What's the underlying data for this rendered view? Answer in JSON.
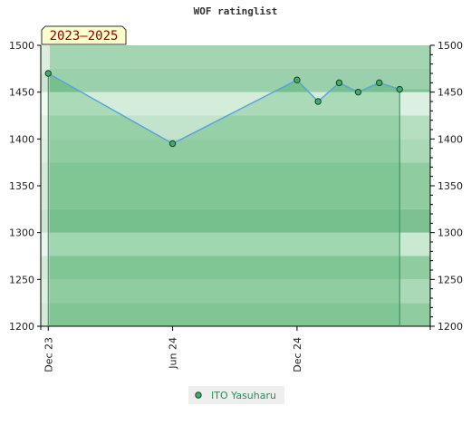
{
  "chart_data": {
    "type": "line",
    "title": "WOF ratinglist",
    "period_badge": "2023–2025",
    "ylim": [
      1200,
      1500
    ],
    "y_ticks": [
      1200,
      1250,
      1300,
      1350,
      1400,
      1450,
      1500
    ],
    "y_tick_labels": [
      "1200",
      "1250",
      "1300",
      "1350",
      "1400",
      "1450",
      "1500"
    ],
    "x_tick_labels": [
      "Dec 23",
      "Jun 24",
      "Dec 24"
    ],
    "x_tick_dates": [
      "2023-12-01",
      "2024-06-01",
      "2024-12-01"
    ],
    "x_range": [
      "2023-11-20",
      "2025-06-15"
    ],
    "grid": true,
    "legend_position": "bottom-center",
    "series": [
      {
        "name": "ITO Yasuharu",
        "color": "#5aa3d8",
        "marker_color": "#3fae6a",
        "points": [
          {
            "x": "2023-12-01",
            "y": 1470
          },
          {
            "x": "2024-06-01",
            "y": 1395
          },
          {
            "x": "2024-12-01",
            "y": 1463
          },
          {
            "x": "2025-01-01",
            "y": 1440
          },
          {
            "x": "2025-02-01",
            "y": 1460
          },
          {
            "x": "2025-03-01",
            "y": 1450
          },
          {
            "x": "2025-04-01",
            "y": 1460
          },
          {
            "x": "2025-05-01",
            "y": 1453
          }
        ]
      }
    ],
    "colors": {
      "band_a": "#8fcc9f",
      "band_b": "#a9d9b6",
      "band_c": "#c9e9d1",
      "band_d": "#7dc193",
      "fill_top": "#b3ddc0",
      "badge_bg": "#ffffcc",
      "badge_border": "#333333",
      "legend_bg": "#eeeeee"
    }
  }
}
